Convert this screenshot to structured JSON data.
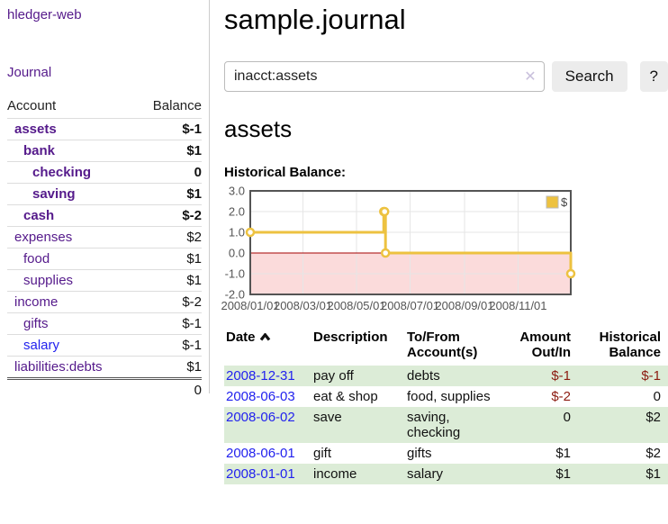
{
  "app": {
    "title": "hledger-web"
  },
  "sidebar": {
    "journal_link": "Journal",
    "table": {
      "account_header": "Account",
      "balance_header": "Balance"
    },
    "accounts": [
      {
        "name": "assets",
        "balance": "$-1",
        "depth": 1,
        "bold": true,
        "blue": false,
        "balance_class": "neg-strong"
      },
      {
        "name": "bank",
        "balance": "$1",
        "depth": 2,
        "bold": true,
        "blue": false,
        "balance_class": ""
      },
      {
        "name": "checking",
        "balance": "0",
        "depth": 3,
        "bold": true,
        "blue": false,
        "balance_class": ""
      },
      {
        "name": "saving",
        "balance": "$1",
        "depth": 3,
        "bold": true,
        "blue": false,
        "balance_class": ""
      },
      {
        "name": "cash",
        "balance": "$-2",
        "depth": 2,
        "bold": true,
        "blue": false,
        "balance_class": "neg-strong"
      },
      {
        "name": "expenses",
        "balance": "$2",
        "depth": 1,
        "bold": false,
        "blue": false,
        "balance_class": ""
      },
      {
        "name": "food",
        "balance": "$1",
        "depth": 2,
        "bold": false,
        "blue": false,
        "balance_class": ""
      },
      {
        "name": "supplies",
        "balance": "$1",
        "depth": 2,
        "bold": false,
        "blue": false,
        "balance_class": ""
      },
      {
        "name": "income",
        "balance": "$-2",
        "depth": 1,
        "bold": false,
        "blue": false,
        "balance_class": "neg-soft"
      },
      {
        "name": "gifts",
        "balance": "$-1",
        "depth": 2,
        "bold": false,
        "blue": false,
        "balance_class": "neg-soft"
      },
      {
        "name": "salary",
        "balance": "$-1",
        "depth": 2,
        "bold": false,
        "blue": true,
        "balance_class": "neg-soft"
      },
      {
        "name": "liabilities:debts",
        "balance": "$1",
        "depth": 1,
        "bold": false,
        "blue": false,
        "balance_class": ""
      }
    ],
    "total": "0"
  },
  "main": {
    "title": "sample.journal",
    "search": {
      "value": "inacct:assets",
      "clear_icon": "✕",
      "button_label": "Search",
      "help_label": "?"
    },
    "account_heading": "assets",
    "chart_label": "Historical Balance:",
    "table_headers": {
      "date": "Date",
      "description": "Description",
      "tofrom": "To/From Account(s)",
      "amount": "Amount Out/In",
      "balance": "Historical Balance"
    },
    "transactions": [
      {
        "date": "2008-12-31",
        "description": "pay off",
        "accounts": "debts",
        "amount": "$-1",
        "amount_class": "neg-strong",
        "balance": "$-1",
        "balance_class": "neg-strong"
      },
      {
        "date": "2008-06-03",
        "description": "eat & shop",
        "accounts": "food, supplies",
        "amount": "$-2",
        "amount_class": "neg-strong",
        "balance": "0",
        "balance_class": ""
      },
      {
        "date": "2008-06-02",
        "description": "save",
        "accounts": "saving, checking",
        "amount": "0",
        "amount_class": "",
        "balance": "$2",
        "balance_class": ""
      },
      {
        "date": "2008-06-01",
        "description": "gift",
        "accounts": "gifts",
        "amount": "$1",
        "amount_class": "",
        "balance": "$2",
        "balance_class": ""
      },
      {
        "date": "2008-01-01",
        "description": "income",
        "accounts": "salary",
        "amount": "$1",
        "amount_class": "",
        "balance": "$1",
        "balance_class": ""
      }
    ]
  },
  "chart_data": {
    "type": "line",
    "step": true,
    "title": "Historical Balance:",
    "legend": "$",
    "legend_position": "top-right",
    "series": [
      {
        "name": "$",
        "color": "#edc240",
        "points": [
          [
            "2008-01-01",
            1
          ],
          [
            "2008-06-01",
            2
          ],
          [
            "2008-06-02",
            2
          ],
          [
            "2008-06-03",
            0
          ],
          [
            "2008-12-31",
            -1
          ]
        ]
      }
    ],
    "xlim": [
      "2008-01-01",
      "2008-12-31"
    ],
    "ylim": [
      -2,
      3
    ],
    "x_ticks": [
      "2008/01/01",
      "2008/03/01",
      "2008/05/01",
      "2008/07/01",
      "2008/09/01",
      "2008/11/01"
    ],
    "y_ticks": [
      3.0,
      2.0,
      1.0,
      0.0,
      -1.0,
      -2.0
    ],
    "grid": true,
    "grid_color": "#e6e6e6",
    "border_color": "#545454",
    "tick_color": "#545454",
    "zero_line_color": "#a40000",
    "negative_fill": "#fbdbdb"
  },
  "colors": {
    "link_purple": "#551a8b",
    "link_blue": "#2222ee",
    "negative_strong": "#8c1b10",
    "negative_soft": "#c0837a",
    "row_stripe_green": "#dcecd7",
    "series_yellow": "#edc240"
  }
}
